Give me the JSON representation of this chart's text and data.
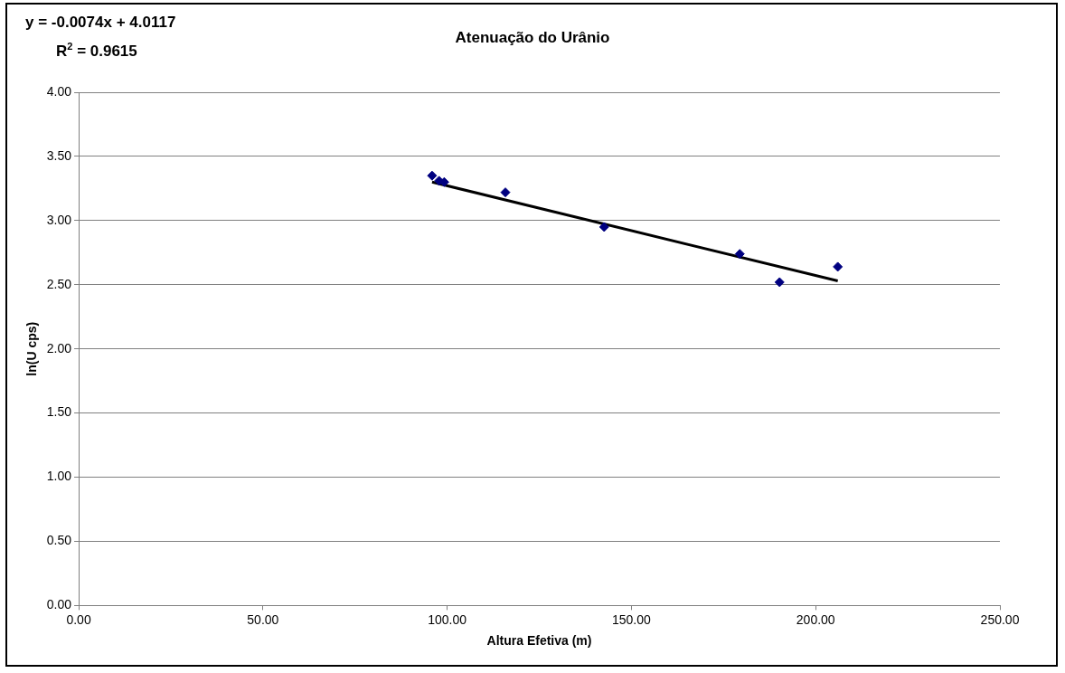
{
  "chart_data": {
    "type": "scatter",
    "title": "Atenuação do Urânio",
    "xlabel": "Altura Efetiva (m)",
    "ylabel": "ln(U cps)",
    "annotations": [
      "y = -0.0074x + 4.0117",
      "R$^{2}$ = 0.9615"
    ],
    "series": [
      {
        "type": "scatter",
        "color": "#000080",
        "marker": "diamond",
        "x": [
          95.9,
          97.8,
          99.2,
          115.8,
          142.6,
          179.4,
          190.2,
          206.0
        ],
        "values": [
          3.35,
          3.31,
          3.3,
          3.22,
          2.95,
          2.74,
          2.52,
          2.64
        ]
      },
      {
        "type": "line",
        "color": "#000000",
        "marker": "none",
        "line_style": "solid",
        "x": [
          95.9,
          206.0
        ],
        "values": [
          3.3,
          2.53
        ]
      }
    ],
    "xlim": [
      0,
      250
    ],
    "xticks": [
      {
        "value": 0,
        "label": "0.00"
      },
      {
        "value": 50,
        "label": "50.00"
      },
      {
        "value": 100,
        "label": "100.00"
      },
      {
        "value": 150,
        "label": "150.00"
      },
      {
        "value": 200,
        "label": "200.00"
      },
      {
        "value": 250,
        "label": "250.00"
      }
    ],
    "ylim": [
      0,
      4
    ],
    "yticks": [
      {
        "value": 0,
        "label": "0.00"
      },
      {
        "value": 0.5,
        "label": "0.50"
      },
      {
        "value": 1,
        "label": "1.00"
      },
      {
        "value": 1.5,
        "label": "1.50"
      },
      {
        "value": 2,
        "label": "2.00"
      },
      {
        "value": 2.5,
        "label": "2.50"
      },
      {
        "value": 3,
        "label": "3.00"
      },
      {
        "value": 3.5,
        "label": "3.50"
      },
      {
        "value": 4,
        "label": "4.00"
      }
    ],
    "grid": "y",
    "legend": false
  }
}
